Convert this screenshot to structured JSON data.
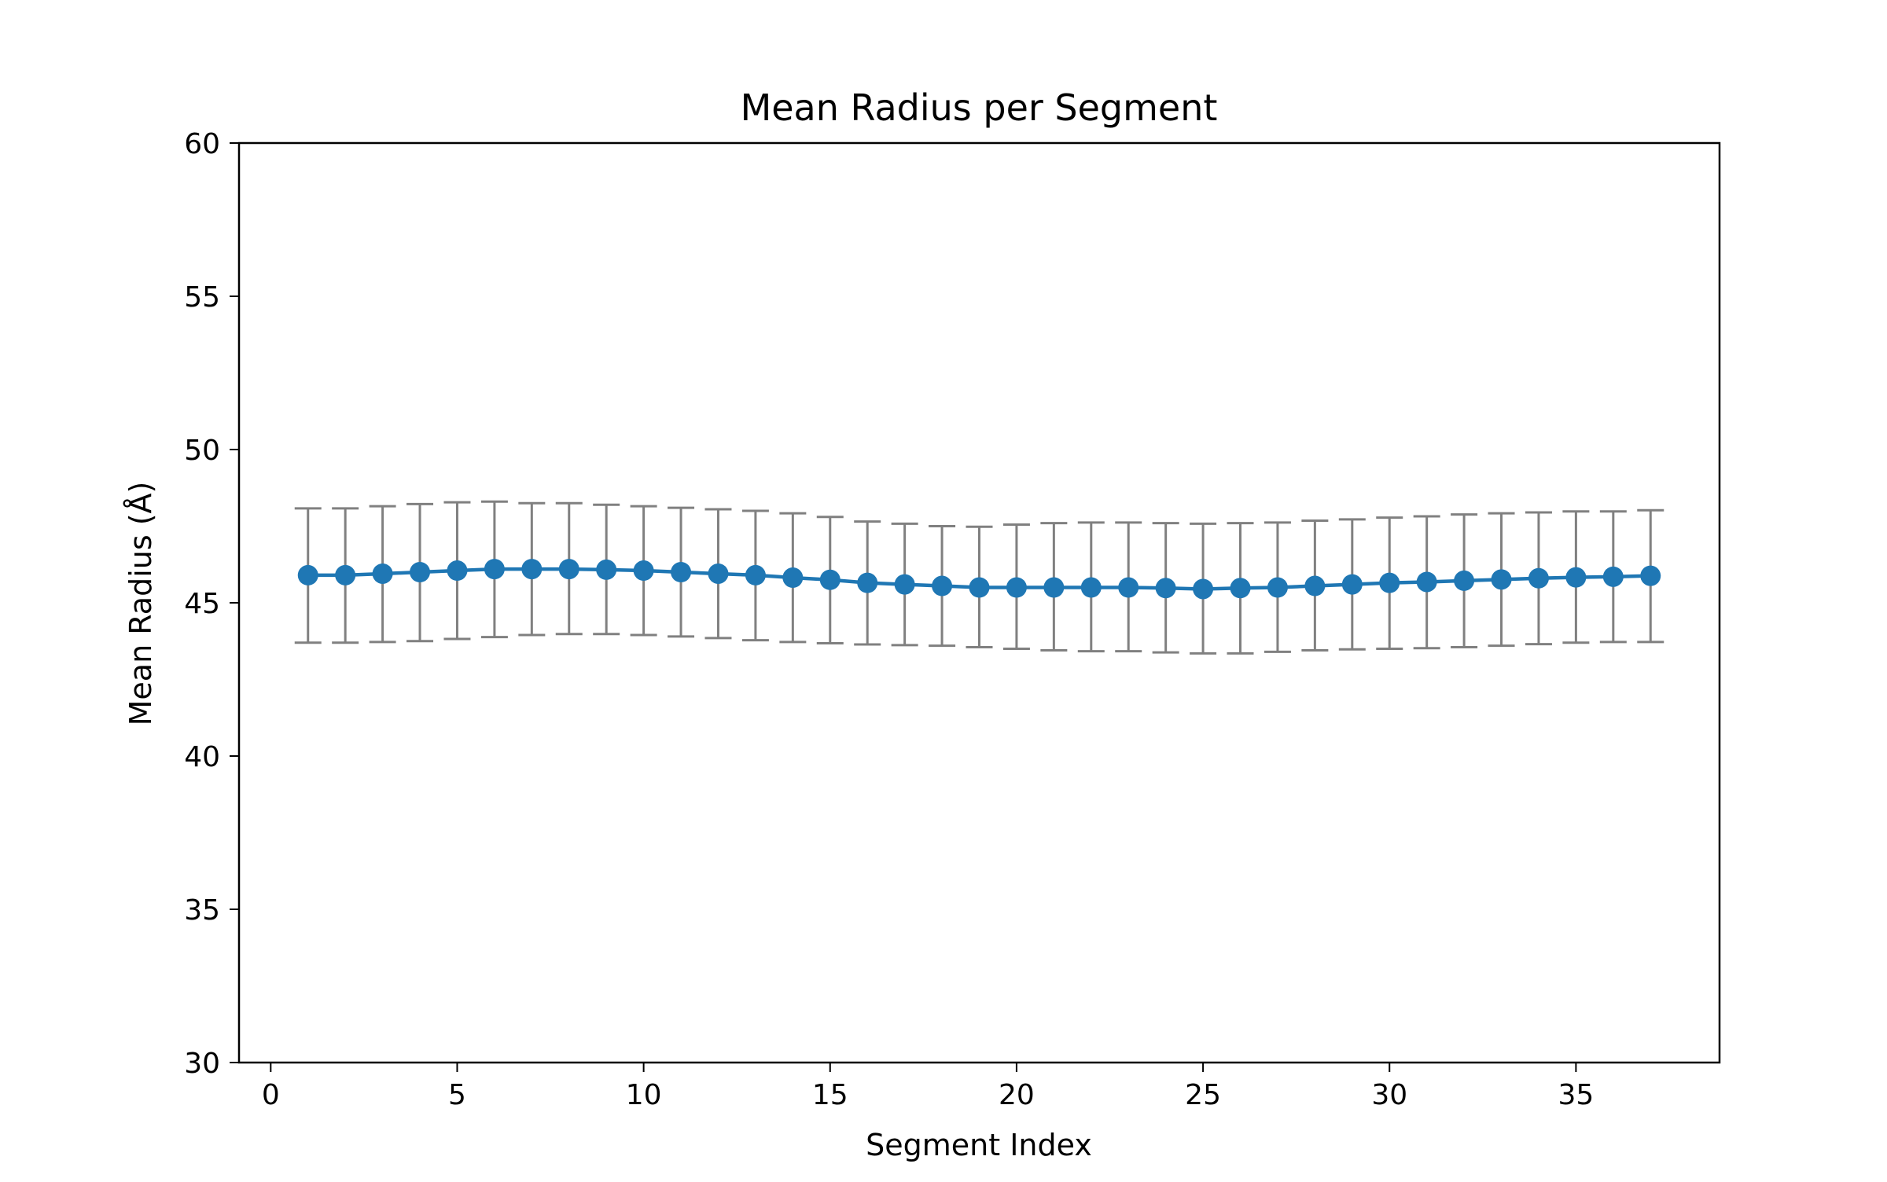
{
  "chart_data": {
    "type": "line",
    "title": "Mean Radius per Segment",
    "xlabel": "Segment Index",
    "ylabel": "Mean Radius (Å)",
    "xlim": [
      -0.85,
      38.85
    ],
    "ylim": [
      30,
      60
    ],
    "xticks": [
      0,
      5,
      10,
      15,
      20,
      25,
      30,
      35
    ],
    "yticks": [
      30,
      35,
      40,
      45,
      50,
      55,
      60
    ],
    "grid": false,
    "legend": "none",
    "series": [
      {
        "color": "#1f77b4",
        "errorbar_color": "#808080",
        "x": [
          1,
          2,
          3,
          4,
          5,
          6,
          7,
          8,
          9,
          10,
          11,
          12,
          13,
          14,
          15,
          16,
          17,
          18,
          19,
          20,
          21,
          22,
          23,
          24,
          25,
          26,
          27,
          28,
          29,
          30,
          31,
          32,
          33,
          34,
          35,
          36,
          37
        ],
        "y": [
          45.9,
          45.9,
          45.95,
          46.0,
          46.05,
          46.1,
          46.1,
          46.1,
          46.08,
          46.05,
          46.0,
          45.95,
          45.9,
          45.82,
          45.75,
          45.65,
          45.6,
          45.55,
          45.5,
          45.5,
          45.5,
          45.5,
          45.5,
          45.48,
          45.45,
          45.48,
          45.5,
          45.55,
          45.6,
          45.65,
          45.68,
          45.72,
          45.76,
          45.8,
          45.83,
          45.85,
          45.88
        ],
        "yerr_low": [
          43.7,
          43.7,
          43.72,
          43.75,
          43.82,
          43.88,
          43.95,
          43.98,
          43.98,
          43.95,
          43.9,
          43.85,
          43.78,
          43.72,
          43.68,
          43.64,
          43.62,
          43.6,
          43.55,
          43.5,
          43.45,
          43.42,
          43.42,
          43.38,
          43.35,
          43.35,
          43.4,
          43.45,
          43.48,
          43.5,
          43.52,
          43.55,
          43.6,
          43.65,
          43.7,
          43.72,
          43.72
        ],
        "yerr_high": [
          48.08,
          48.08,
          48.15,
          48.22,
          48.28,
          48.3,
          48.25,
          48.25,
          48.2,
          48.15,
          48.1,
          48.05,
          48.0,
          47.92,
          47.8,
          47.65,
          47.58,
          47.5,
          47.48,
          47.55,
          47.6,
          47.62,
          47.62,
          47.6,
          47.58,
          47.6,
          47.62,
          47.68,
          47.72,
          47.78,
          47.82,
          47.88,
          47.92,
          47.95,
          47.98,
          47.98,
          48.02
        ]
      }
    ]
  }
}
